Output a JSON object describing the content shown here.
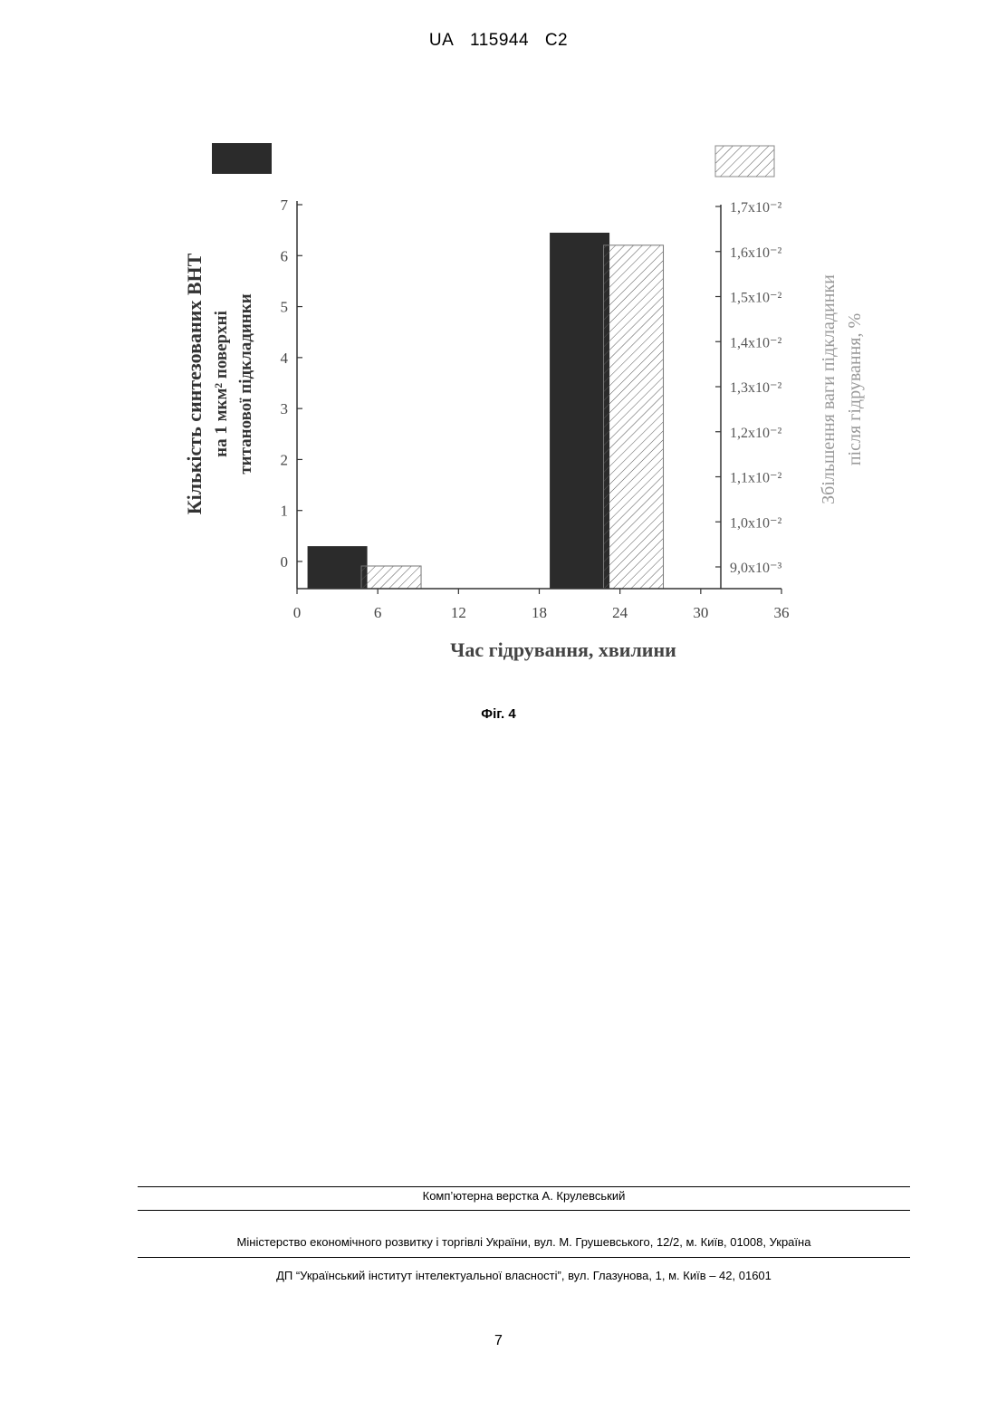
{
  "header": {
    "country": "UA",
    "number": "115944",
    "kind": "C2"
  },
  "chart_data": {
    "type": "bar",
    "x_ticks": [
      "0",
      "6",
      "12",
      "18",
      "24",
      "30",
      "36"
    ],
    "xlim": [
      0,
      36
    ],
    "xlabel": "Час гідрування, хвилини",
    "left_axis": {
      "label_lines": [
        "Кількість синтезованих ВНТ",
        "на 1 мкм² поверхні",
        "титанової підкладинки"
      ],
      "ticks": [
        "0",
        "1",
        "2",
        "3",
        "4",
        "5",
        "6",
        "7"
      ],
      "ylim": [
        0,
        7
      ]
    },
    "right_axis": {
      "label_lines": [
        "Збільшення ваги підкладинки",
        "після гідрування, %"
      ],
      "ticks": [
        "9,0x10⁻³",
        "1,0x10⁻²",
        "1,1x10⁻²",
        "1,2x10⁻²",
        "1,3x10⁻²",
        "1,4x10⁻²",
        "1,5x10⁻²",
        "1,6x10⁻²",
        "1,7x10⁻²"
      ],
      "ylim": [
        0.009,
        0.017
      ]
    },
    "series": [
      {
        "axis": "left",
        "style": "solid-dark",
        "x": [
          3,
          21
        ],
        "values": [
          0.3,
          6.45
        ]
      },
      {
        "axis": "right",
        "style": "hatched",
        "x": [
          7,
          25
        ],
        "values": [
          0.00902,
          0.01614
        ]
      }
    ],
    "legend": {
      "position": "top",
      "entries": [
        "solid-dark",
        "hatched"
      ]
    }
  },
  "caption": "Фіг. 4",
  "footer": {
    "line1": "Комп’ютерна верстка А. Крулевський",
    "line2": "Міністерство економічного розвитку і торгівлі України, вул. М. Грушевського, 12/2, м. Київ, 01008, Україна",
    "line3": "ДП “Український інститут інтелектуальної власності”, вул. Глазунова, 1, м. Київ – 42, 01601"
  },
  "page_number": "7"
}
